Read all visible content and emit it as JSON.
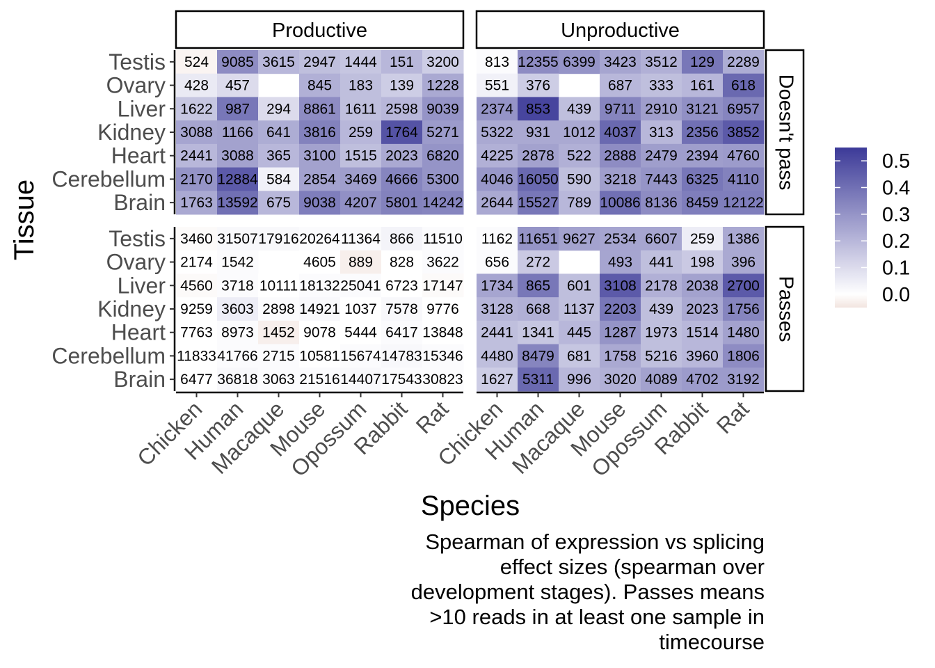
{
  "chart_data": {
    "type": "heatmap",
    "xlabel": "Species",
    "ylabel": "Tissue",
    "caption_lines": [
      "Spearman of expression vs splicing",
      "effect sizes (spearman over",
      "development stages). Passes means",
      ">10 reads in at least one sample in",
      "timecourse"
    ],
    "species": [
      "Chicken",
      "Human",
      "Macaque",
      "Mouse",
      "Opossum",
      "Rabbit",
      "Rat"
    ],
    "tissues": [
      "Testis",
      "Ovary",
      "Liver",
      "Kidney",
      "Heart",
      "Cerebellum",
      "Brain"
    ],
    "col_facets": [
      "Productive",
      "Unproductive"
    ],
    "row_facets": [
      "Doesn't pass",
      "Passes"
    ],
    "legend": {
      "ticks": [
        "0.0",
        "0.1",
        "0.2",
        "0.3",
        "0.4",
        "0.5"
      ],
      "tick_values": [
        0,
        0.1,
        0.2,
        0.3,
        0.4,
        0.5
      ],
      "range": [
        -0.05,
        0.55
      ],
      "low_color": "#f2e4df",
      "mid_color": "#ffffff",
      "high_color": "#3c3a98"
    },
    "panels": [
      {
        "col": "Productive",
        "row": "Doesn't pass",
        "counts": [
          [
            "524",
            "9085",
            "3615",
            "2947",
            "1444",
            "151",
            "3200"
          ],
          [
            "428",
            "457",
            "",
            "845",
            "183",
            "139",
            "1228"
          ],
          [
            "1622",
            "987",
            "294",
            "8861",
            "1611",
            "2598",
            "9039"
          ],
          [
            "3088",
            "1166",
            "641",
            "3816",
            "259",
            "1764",
            "5271"
          ],
          [
            "2441",
            "3088",
            "365",
            "3100",
            "1515",
            "2023",
            "6820"
          ],
          [
            "2170",
            "12884",
            "584",
            "2854",
            "3469",
            "4666",
            "5300"
          ],
          [
            "1763",
            "13592",
            "675",
            "9038",
            "4207",
            "5801",
            "14242"
          ]
        ],
        "values": [
          [
            -0.02,
            0.32,
            0.2,
            0.18,
            0.16,
            0.2,
            0.14
          ],
          [
            0.06,
            0.1,
            null,
            0.22,
            0.18,
            0.14,
            0.24
          ],
          [
            0.16,
            0.38,
            0.1,
            0.32,
            0.18,
            0.2,
            0.3
          ],
          [
            0.25,
            0.26,
            0.23,
            0.35,
            0.2,
            0.48,
            0.28
          ],
          [
            0.2,
            0.26,
            0.2,
            0.26,
            0.18,
            0.24,
            0.3
          ],
          [
            0.3,
            0.46,
            0.04,
            0.26,
            0.27,
            0.34,
            0.3
          ],
          [
            0.24,
            0.4,
            0.2,
            0.36,
            0.31,
            0.35,
            0.34
          ]
        ]
      },
      {
        "col": "Unproductive",
        "row": "Doesn't pass",
        "counts": [
          [
            "813",
            "12355",
            "6399",
            "3423",
            "3512",
            "129",
            "2289"
          ],
          [
            "551",
            "376",
            "",
            "687",
            "333",
            "161",
            "618"
          ],
          [
            "2374",
            "853",
            "439",
            "9711",
            "2910",
            "3121",
            "6957"
          ],
          [
            "5322",
            "931",
            "1012",
            "4037",
            "313",
            "2356",
            "3852"
          ],
          [
            "4225",
            "2878",
            "522",
            "2888",
            "2479",
            "2394",
            "4760"
          ],
          [
            "4046",
            "16050",
            "590",
            "3218",
            "7443",
            "6325",
            "4110"
          ],
          [
            "2644",
            "15527",
            "789",
            "10086",
            "8136",
            "8459",
            "12122"
          ]
        ],
        "values": [
          [
            0.01,
            0.32,
            0.3,
            0.25,
            0.22,
            0.38,
            0.23
          ],
          [
            0.04,
            0.14,
            null,
            0.2,
            0.18,
            0.2,
            0.42
          ],
          [
            0.3,
            0.52,
            0.18,
            0.34,
            0.27,
            0.31,
            0.34
          ],
          [
            0.24,
            0.24,
            0.24,
            0.42,
            0.2,
            0.4,
            0.46
          ],
          [
            0.22,
            0.26,
            0.22,
            0.32,
            0.27,
            0.27,
            0.28
          ],
          [
            0.29,
            0.42,
            0.18,
            0.27,
            0.3,
            0.38,
            0.35
          ],
          [
            0.24,
            0.38,
            0.2,
            0.4,
            0.32,
            0.36,
            0.36
          ]
        ]
      },
      {
        "col": "Productive",
        "row": "Passes",
        "counts": [
          [
            "3460",
            "31507",
            "17916",
            "20264",
            "11364",
            "866",
            "11510"
          ],
          [
            "2174",
            "1542",
            "",
            "4605",
            "889",
            "828",
            "3622"
          ],
          [
            "4560",
            "3718",
            "10111",
            "18132",
            "25041",
            "6723",
            "17147"
          ],
          [
            "9259",
            "3603",
            "2898",
            "14921",
            "1037",
            "7578",
            "9776"
          ],
          [
            "7763",
            "8973",
            "1452",
            "9078",
            "5444",
            "6417",
            "13848"
          ],
          [
            "11833",
            "41766",
            "2715",
            "10581",
            "15674",
            "14783",
            "15346"
          ],
          [
            "6477",
            "36818",
            "3063",
            "21516",
            "14407",
            "17543",
            "30823"
          ]
        ],
        "values": [
          [
            -0.01,
            0.02,
            0.02,
            0.01,
            0.01,
            0.03,
            0.01
          ],
          [
            0.0,
            0.01,
            null,
            0.0,
            -0.03,
            0.0,
            0.01
          ],
          [
            -0.01,
            0.01,
            0.0,
            0.01,
            0.01,
            0.0,
            -0.01
          ],
          [
            0.0,
            0.05,
            0.01,
            0.02,
            0.0,
            0.02,
            0.0
          ],
          [
            0.0,
            0.01,
            -0.03,
            0.0,
            0.0,
            0.01,
            0.0
          ],
          [
            0.0,
            0.01,
            0.01,
            0.0,
            0.01,
            0.02,
            0.01
          ],
          [
            0.0,
            0.02,
            0.01,
            0.01,
            0.02,
            0.01,
            0.01
          ]
        ]
      },
      {
        "col": "Unproductive",
        "row": "Passes",
        "counts": [
          [
            "1162",
            "11651",
            "9627",
            "2534",
            "6607",
            "259",
            "1386"
          ],
          [
            "656",
            "272",
            "",
            "493",
            "441",
            "198",
            "396"
          ],
          [
            "1734",
            "865",
            "601",
            "3108",
            "2178",
            "2038",
            "2700"
          ],
          [
            "3128",
            "668",
            "1137",
            "2203",
            "439",
            "2023",
            "1756"
          ],
          [
            "2441",
            "1341",
            "445",
            "1287",
            "1973",
            "1514",
            "1480"
          ],
          [
            "4480",
            "8479",
            "681",
            "1758",
            "5216",
            "3960",
            "1806"
          ],
          [
            "1627",
            "5311",
            "996",
            "3020",
            "4089",
            "4702",
            "3192"
          ]
        ],
        "values": [
          [
            0.01,
            0.3,
            0.26,
            0.25,
            0.25,
            0.05,
            0.24
          ],
          [
            0.01,
            0.15,
            null,
            0.25,
            0.18,
            0.15,
            0.24
          ],
          [
            0.25,
            0.38,
            0.18,
            0.46,
            0.22,
            0.26,
            0.46
          ],
          [
            0.21,
            0.22,
            0.18,
            0.38,
            0.18,
            0.24,
            0.34
          ],
          [
            0.18,
            0.16,
            0.2,
            0.3,
            0.18,
            0.2,
            0.26
          ],
          [
            0.18,
            0.34,
            0.16,
            0.24,
            0.18,
            0.2,
            0.32
          ],
          [
            0.14,
            0.42,
            0.2,
            0.22,
            0.26,
            0.28,
            0.28
          ]
        ]
      }
    ]
  }
}
